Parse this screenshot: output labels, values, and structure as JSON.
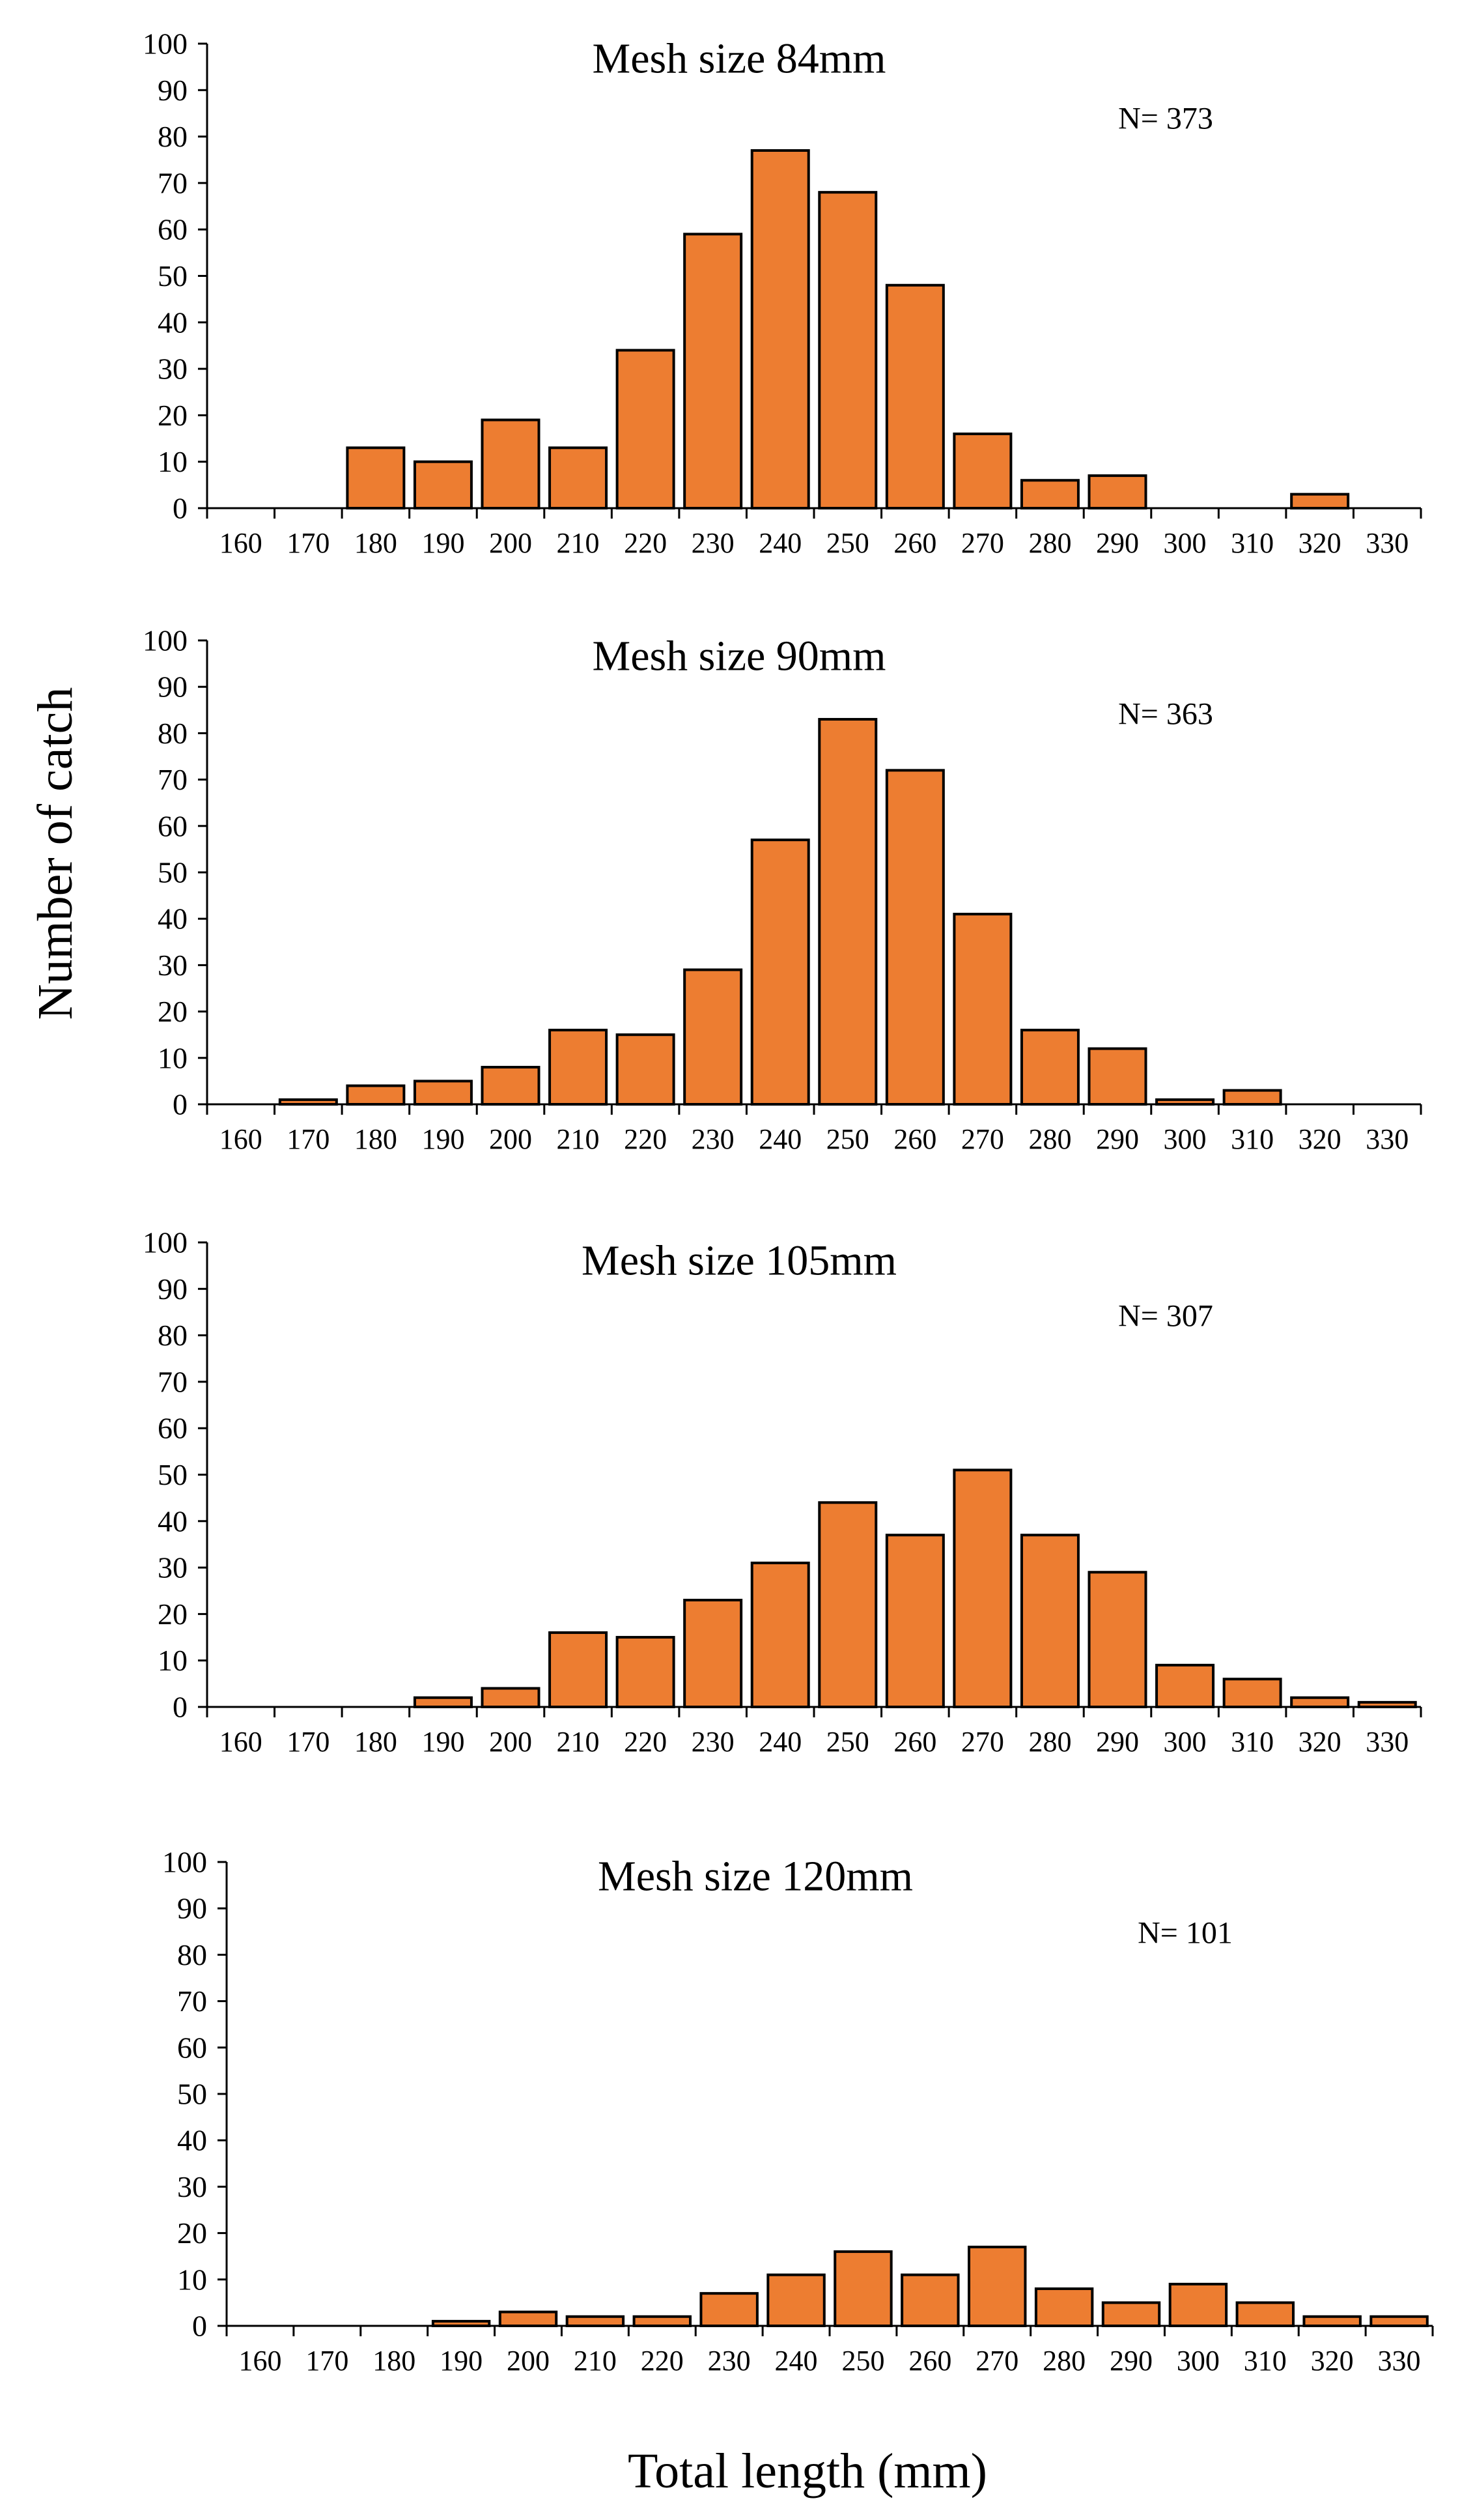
{
  "figure": {
    "ylabel": "Number of catch",
    "xlabel": "Total length (mm)",
    "bar_color": "#ED7D31",
    "bar_edge_color": "#000000"
  },
  "chart_data": [
    {
      "type": "bar",
      "title": "Mesh size  84mm",
      "n_label": "N= 373",
      "categories": [
        "160",
        "170",
        "180",
        "190",
        "200",
        "210",
        "220",
        "230",
        "240",
        "250",
        "260",
        "270",
        "280",
        "290",
        "300",
        "310",
        "320",
        "330"
      ],
      "values": [
        0,
        0,
        13,
        10,
        19,
        13,
        34,
        59,
        77,
        68,
        48,
        16,
        6,
        7,
        0,
        0,
        3,
        0
      ],
      "ylim": [
        0,
        100
      ],
      "yticks": [
        0,
        10,
        20,
        30,
        40,
        50,
        60,
        70,
        80,
        90,
        100
      ]
    },
    {
      "type": "bar",
      "title": "Mesh size  90mm",
      "n_label": "N= 363",
      "categories": [
        "160",
        "170",
        "180",
        "190",
        "200",
        "210",
        "220",
        "230",
        "240",
        "250",
        "260",
        "270",
        "280",
        "290",
        "300",
        "310",
        "320",
        "330"
      ],
      "values": [
        0,
        1,
        4,
        5,
        8,
        16,
        15,
        29,
        57,
        83,
        72,
        41,
        16,
        12,
        1,
        3,
        0,
        0
      ],
      "ylim": [
        0,
        100
      ],
      "yticks": [
        0,
        10,
        20,
        30,
        40,
        50,
        60,
        70,
        80,
        90,
        100
      ]
    },
    {
      "type": "bar",
      "title": "Mesh size 105mm",
      "n_label": "N= 307",
      "categories": [
        "160",
        "170",
        "180",
        "190",
        "200",
        "210",
        "220",
        "230",
        "240",
        "250",
        "260",
        "270",
        "280",
        "290",
        "300",
        "310",
        "320",
        "330"
      ],
      "values": [
        0,
        0,
        0,
        2,
        4,
        16,
        15,
        23,
        31,
        44,
        37,
        51,
        37,
        29,
        9,
        6,
        2,
        1
      ],
      "ylim": [
        0,
        100
      ],
      "yticks": [
        0,
        10,
        20,
        30,
        40,
        50,
        60,
        70,
        80,
        90,
        100
      ]
    },
    {
      "type": "bar",
      "title": "Mesh size  120mm",
      "n_label": "N= 101",
      "categories": [
        "160",
        "170",
        "180",
        "190",
        "200",
        "210",
        "220",
        "230",
        "240",
        "250",
        "260",
        "270",
        "280",
        "290",
        "300",
        "310",
        "320",
        "330"
      ],
      "values": [
        0,
        0,
        0,
        1,
        3,
        2,
        2,
        7,
        11,
        16,
        11,
        17,
        8,
        5,
        9,
        5,
        2,
        2
      ],
      "ylim": [
        0,
        100
      ],
      "yticks": [
        0,
        10,
        20,
        30,
        40,
        50,
        60,
        70,
        80,
        90,
        100
      ]
    }
  ]
}
